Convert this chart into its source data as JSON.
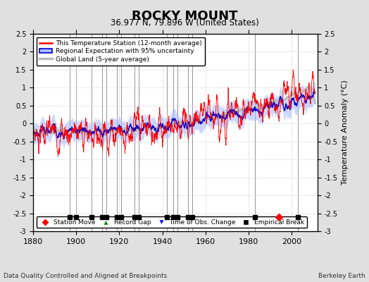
{
  "title": "ROCKY MOUNT",
  "subtitle": "36.977 N, 79.896 W (United States)",
  "ylabel": "Temperature Anomaly (°C)",
  "xlabel_note": "Data Quality Controlled and Aligned at Breakpoints",
  "credit": "Berkeley Earth",
  "year_start": 1880,
  "year_end": 2011,
  "ylim": [
    -3.0,
    2.5
  ],
  "yticks": [
    -3,
    -2.5,
    -2,
    -1.5,
    -1,
    -0.5,
    0,
    0.5,
    1,
    1.5,
    2,
    2.5
  ],
  "xticks": [
    1880,
    1900,
    1920,
    1940,
    1960,
    1980,
    2000
  ],
  "background_color": "#e0e0e0",
  "plot_bg_color": "#ffffff",
  "grid_color": "#bbbbbb",
  "station_line_color": "#ff0000",
  "regional_line_color": "#0000cc",
  "regional_fill_color": "#aabbff",
  "global_line_color": "#bbbbbb",
  "legend_items": [
    "This Temperature Station (12-month average)",
    "Regional Expectation with 95% uncertainty",
    "Global Land (5-year average)"
  ],
  "empirical_break": [
    1897,
    1900,
    1907,
    1912,
    1914,
    1919,
    1921,
    1927,
    1929,
    1942,
    1945,
    1947,
    1952,
    1954,
    1983,
    2003
  ],
  "station_move": [
    1994
  ],
  "record_gap": [],
  "obs_change": []
}
